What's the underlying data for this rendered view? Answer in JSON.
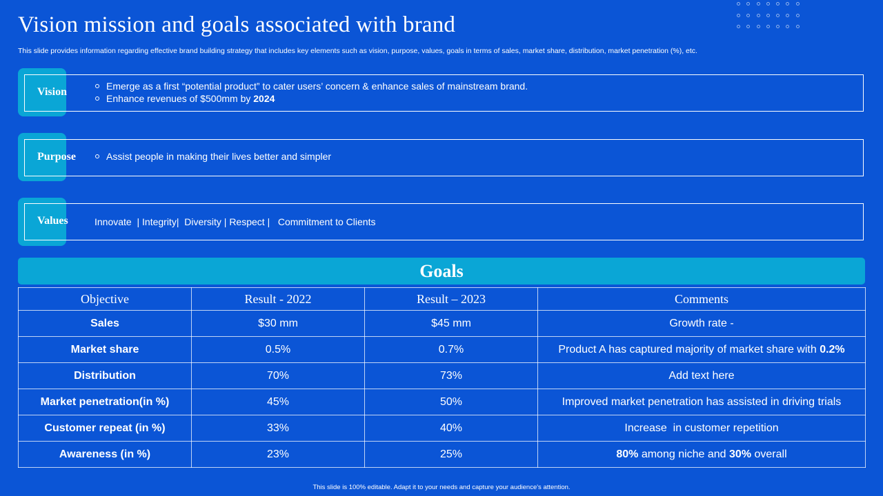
{
  "title": "Vision mission and goals associated with brand",
  "subtitle": "This slide provides information regarding effective brand building strategy that includes key elements such as vision, purpose, values, goals in terms of sales, market share, distribution, market penetration (%), etc.",
  "vision": {
    "label": "Vision",
    "bullet1": "Emerge as a first “potential product” to cater users’ concern & enhance sales of mainstream brand.",
    "bullet2_prefix": "Enhance revenues of $500mm by ",
    "bullet2_bold": "2024"
  },
  "purpose": {
    "label": "Purpose",
    "bullet1": "Assist people in making their lives better and simpler"
  },
  "values": {
    "label": "Values",
    "text": "Innovate  | Integrity|  Diversity | Respect |   Commitment to Clients"
  },
  "goals": {
    "banner": "Goals",
    "headers": [
      "Objective",
      "Result - 2022",
      "Result – 2023",
      "Comments"
    ],
    "rows": [
      {
        "objective": "Sales",
        "r2022": "$30 mm",
        "r2023": "$45 mm",
        "comment_pre": "Growth rate -",
        "comment_bold": "",
        "comment_mid": "",
        "comment_bold2": "",
        "comment_post": ""
      },
      {
        "objective": "Market share",
        "r2022": "0.5%",
        "r2023": "0.7%",
        "comment_pre": "Product A has captured majority of market share with ",
        "comment_bold": "0.2%",
        "comment_mid": "",
        "comment_bold2": "",
        "comment_post": ""
      },
      {
        "objective": "Distribution",
        "r2022": "70%",
        "r2023": "73%",
        "comment_pre": "Add text here",
        "comment_bold": "",
        "comment_mid": "",
        "comment_bold2": "",
        "comment_post": ""
      },
      {
        "objective": "Market penetration(in %)",
        "r2022": "45%",
        "r2023": "50%",
        "comment_pre": "Improved market penetration has assisted in driving trials",
        "comment_bold": "",
        "comment_mid": "",
        "comment_bold2": "",
        "comment_post": ""
      },
      {
        "objective": "Customer repeat (in %)",
        "r2022": "33%",
        "r2023": "40%",
        "comment_pre": "Increase  in customer repetition",
        "comment_bold": "",
        "comment_mid": "",
        "comment_bold2": "",
        "comment_post": ""
      },
      {
        "objective": "Awareness (in  %)",
        "r2022": "23%",
        "r2023": "25%",
        "comment_pre": "",
        "comment_bold": "80%",
        "comment_mid": " among niche and ",
        "comment_bold2": "30%",
        "comment_post": " overall"
      }
    ]
  },
  "footer": "This slide is 100% editable.  Adapt it to your needs and capture your audience's attention.",
  "colors": {
    "background": "#0B55D6",
    "accent": "#0AA6D6",
    "text": "#FFFFFF"
  }
}
